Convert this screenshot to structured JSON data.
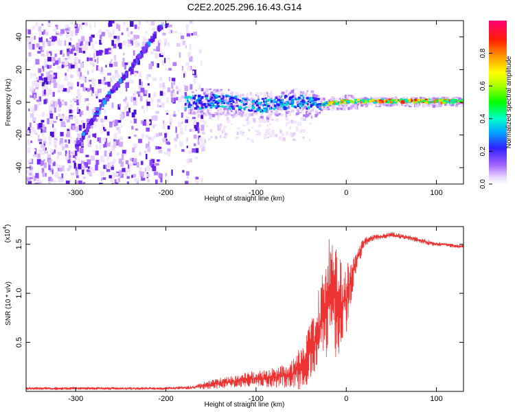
{
  "title": "C2E2.2025.296.16.43.G14",
  "chart_data": [
    {
      "type": "heatmap",
      "xlabel": "Height of straight line (km)",
      "ylabel": "Frequency (Hz)",
      "xlim": [
        -355,
        130
      ],
      "ylim": [
        -50,
        50
      ],
      "xticks": [
        -300,
        -200,
        -100,
        0,
        100
      ],
      "yticks": [
        -40,
        -20,
        0,
        20,
        40
      ],
      "colorbar": {
        "label": "Normalized spectral amplitude",
        "range": [
          0.0,
          1.0
        ],
        "ticks": [
          0.0,
          0.2,
          0.4,
          0.6,
          0.8
        ],
        "tick_labels": [
          "0.0",
          "0.2",
          "0.4",
          "0.6",
          "0.8"
        ]
      },
      "features": [
        {
          "name": "diagonal streak",
          "points": [
            [
              -300,
              -28
            ],
            [
              -270,
              0
            ],
            [
              -240,
              20
            ],
            [
              -205,
              47
            ]
          ]
        },
        {
          "name": "noise band",
          "x_range": [
            -355,
            -160
          ],
          "freq_range": [
            -50,
            50
          ]
        },
        {
          "name": "carrier band",
          "points": [
            [
              -180,
              0
            ],
            [
              -140,
              1
            ],
            [
              -100,
              -2
            ],
            [
              -60,
              1
            ],
            [
              -30,
              -1
            ],
            [
              0,
              1
            ],
            [
              130,
              1
            ]
          ]
        }
      ]
    },
    {
      "type": "line",
      "xlabel": "Height of straight line (km)",
      "ylabel": "SNR (10 * v/v)",
      "y_multiplier": "(x10",
      "y_multiplier_exp": "4",
      "y_multiplier_close": ")",
      "xlim": [
        -355,
        130
      ],
      "ylim": [
        0,
        1.68
      ],
      "xticks": [
        -300,
        -200,
        -100,
        0,
        100
      ],
      "yticks": [
        0.5,
        1.0,
        1.5
      ],
      "ytick_labels": [
        "0.5",
        "1.0",
        "1.5"
      ],
      "series": [
        {
          "name": "SNR",
          "color": "#ee3333",
          "x": [
            -355,
            -300,
            -250,
            -200,
            -170,
            -150,
            -120,
            -100,
            -80,
            -60,
            -50,
            -40,
            -30,
            -20,
            -15,
            -10,
            -5,
            0,
            10,
            20,
            30,
            40,
            50,
            60,
            70,
            80,
            90,
            100,
            110,
            120,
            130
          ],
          "y": [
            0.03,
            0.03,
            0.03,
            0.03,
            0.04,
            0.07,
            0.11,
            0.13,
            0.14,
            0.18,
            0.24,
            0.4,
            0.65,
            0.95,
            1.05,
            0.85,
            0.9,
            0.95,
            1.3,
            1.52,
            1.57,
            1.58,
            1.6,
            1.58,
            1.57,
            1.54,
            1.52,
            1.5,
            1.5,
            1.48,
            1.48
          ],
          "noise": [
            0.015,
            0.015,
            0.015,
            0.015,
            0.02,
            0.05,
            0.07,
            0.08,
            0.1,
            0.16,
            0.22,
            0.3,
            0.45,
            0.6,
            0.55,
            0.6,
            0.5,
            0.35,
            0.12,
            0.05,
            0.03,
            0.03,
            0.03,
            0.03,
            0.03,
            0.03,
            0.03,
            0.02,
            0.02,
            0.02,
            0.02
          ]
        }
      ]
    }
  ]
}
